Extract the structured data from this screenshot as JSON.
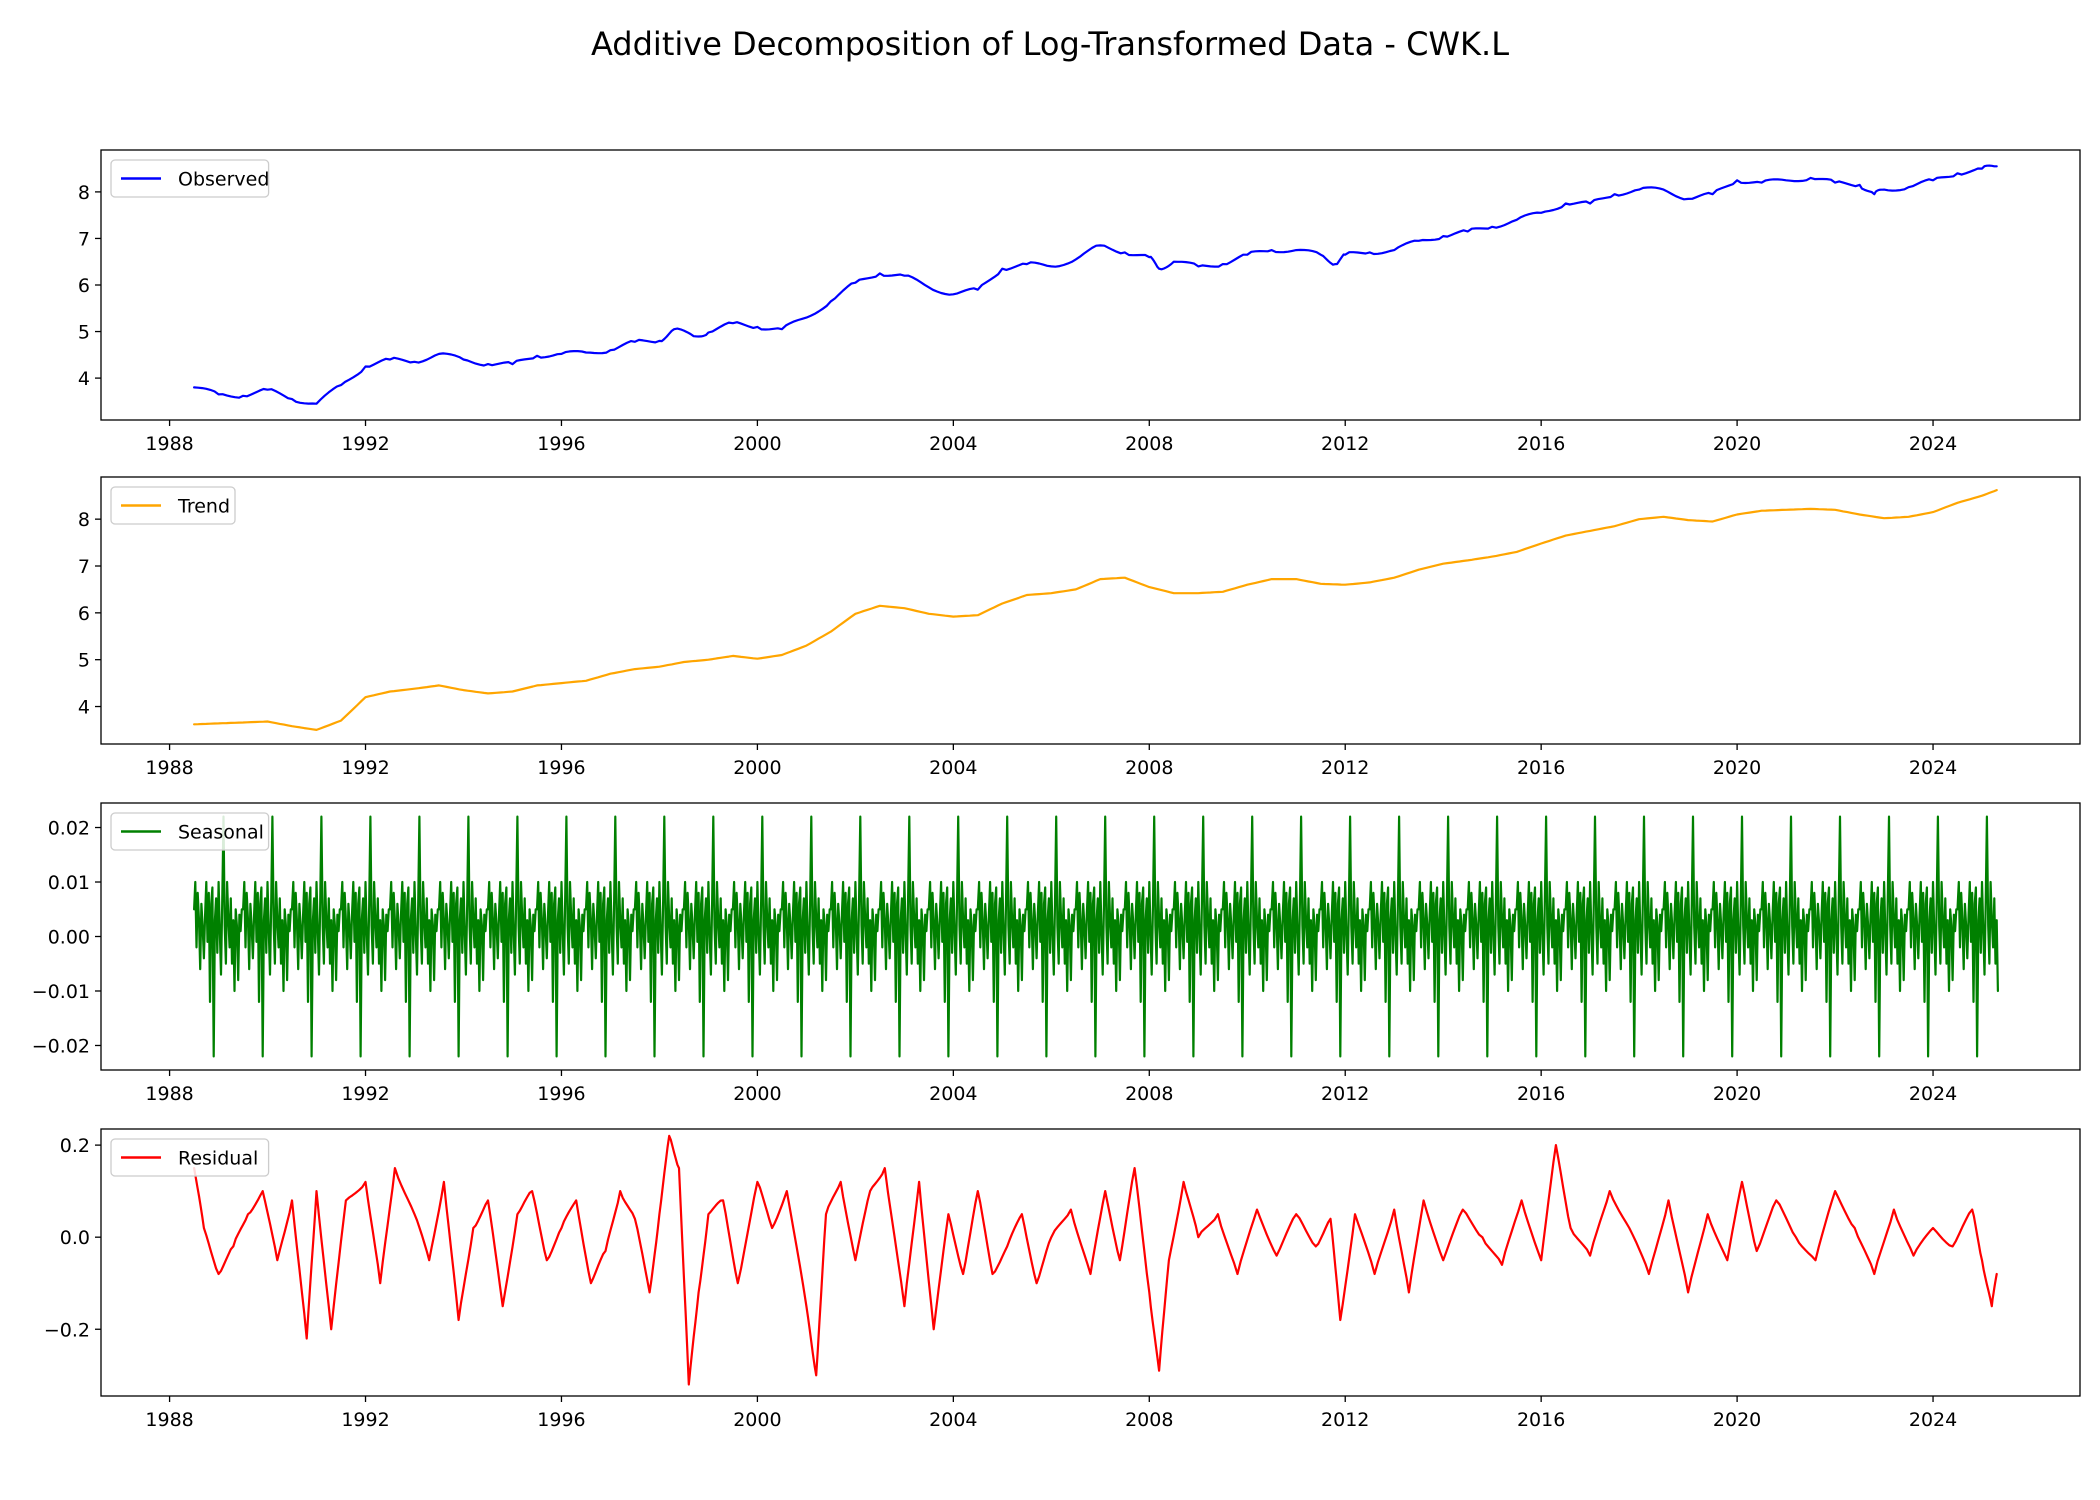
{
  "figure": {
    "title": "Additive Decomposition of Log-Transformed Data - CWK.L"
  },
  "chart_data": [
    {
      "type": "line",
      "title": "",
      "xlabel": "",
      "ylabel": "",
      "xlim": [
        1986.6,
        2027.0
      ],
      "ylim": [
        3.1,
        8.9
      ],
      "yticks": [
        "4",
        "5",
        "6",
        "7",
        "8"
      ],
      "xticks": [
        "1988",
        "1992",
        "1996",
        "2000",
        "2004",
        "2008",
        "2012",
        "2016",
        "2020",
        "2024"
      ],
      "grid": false,
      "legend": "upper left",
      "series": [
        {
          "name": "Observed",
          "color": "#0000ff",
          "x": [
            1988.5,
            1989.0,
            1989.5,
            1990.0,
            1990.5,
            1991.0,
            1991.5,
            1992.0,
            1992.5,
            1993.0,
            1993.5,
            1994.0,
            1994.5,
            1995.0,
            1995.5,
            1996.0,
            1996.5,
            1997.0,
            1997.5,
            1998.0,
            1998.3,
            1998.7,
            1999.0,
            1999.5,
            2000.0,
            2000.5,
            2001.0,
            2001.5,
            2002.0,
            2002.5,
            2003.0,
            2003.5,
            2004.0,
            2004.5,
            2005.0,
            2005.5,
            2006.0,
            2006.5,
            2007.0,
            2007.5,
            2008.0,
            2008.2,
            2008.5,
            2009.0,
            2009.5,
            2010.0,
            2010.5,
            2011.0,
            2011.5,
            2011.8,
            2012.0,
            2012.5,
            2013.0,
            2013.5,
            2014.0,
            2014.5,
            2015.0,
            2015.5,
            2016.0,
            2016.5,
            2017.0,
            2017.5,
            2018.0,
            2018.5,
            2019.0,
            2019.5,
            2020.0,
            2020.5,
            2021.0,
            2021.5,
            2022.0,
            2022.5,
            2022.8,
            2023.0,
            2023.5,
            2024.0,
            2024.5,
            2025.0,
            2025.3
          ],
          "y": [
            3.8,
            3.65,
            3.62,
            3.75,
            3.55,
            3.45,
            3.85,
            4.25,
            4.4,
            4.35,
            4.52,
            4.4,
            4.3,
            4.3,
            4.48,
            4.52,
            4.55,
            4.6,
            4.78,
            4.8,
            5.05,
            4.9,
            4.98,
            5.18,
            5.1,
            5.05,
            5.3,
            5.65,
            6.05,
            6.25,
            6.2,
            5.95,
            5.8,
            5.9,
            6.35,
            6.45,
            6.4,
            6.55,
            6.85,
            6.7,
            6.6,
            6.35,
            6.5,
            6.4,
            6.45,
            6.65,
            6.75,
            6.75,
            6.65,
            6.45,
            6.65,
            6.7,
            6.75,
            6.95,
            7.05,
            7.15,
            7.25,
            7.4,
            7.55,
            7.75,
            7.75,
            7.95,
            8.05,
            8.05,
            7.85,
            7.95,
            8.25,
            8.2,
            8.25,
            8.3,
            8.2,
            8.15,
            7.95,
            8.05,
            8.1,
            8.25,
            8.4,
            8.5,
            8.55
          ]
        }
      ]
    },
    {
      "type": "line",
      "title": "",
      "xlabel": "",
      "ylabel": "",
      "xlim": [
        1986.6,
        2027.0
      ],
      "ylim": [
        3.2,
        8.9
      ],
      "yticks": [
        "4",
        "5",
        "6",
        "7",
        "8"
      ],
      "xticks": [
        "1988",
        "1992",
        "1996",
        "2000",
        "2004",
        "2008",
        "2012",
        "2016",
        "2020",
        "2024"
      ],
      "grid": false,
      "legend": "upper left",
      "series": [
        {
          "name": "Trend",
          "color": "#ffa500",
          "x": [
            1988.5,
            1989.0,
            1989.5,
            1990.0,
            1990.5,
            1991.0,
            1991.5,
            1992.0,
            1992.5,
            1993.0,
            1993.5,
            1994.0,
            1994.5,
            1995.0,
            1995.5,
            1996.0,
            1996.5,
            1997.0,
            1997.5,
            1998.0,
            1998.5,
            1999.0,
            1999.5,
            2000.0,
            2000.5,
            2001.0,
            2001.5,
            2002.0,
            2002.5,
            2003.0,
            2003.5,
            2004.0,
            2004.5,
            2005.0,
            2005.5,
            2006.0,
            2006.5,
            2007.0,
            2007.5,
            2008.0,
            2008.5,
            2009.0,
            2009.5,
            2010.0,
            2010.5,
            2011.0,
            2011.5,
            2012.0,
            2012.5,
            2013.0,
            2013.5,
            2014.0,
            2014.5,
            2015.0,
            2015.5,
            2016.0,
            2016.5,
            2017.0,
            2017.5,
            2018.0,
            2018.5,
            2019.0,
            2019.5,
            2020.0,
            2020.5,
            2021.0,
            2021.5,
            2022.0,
            2022.5,
            2023.0,
            2023.5,
            2024.0,
            2024.5,
            2025.0,
            2025.3
          ],
          "y": [
            3.62,
            3.64,
            3.66,
            3.68,
            3.58,
            3.5,
            3.7,
            4.2,
            4.32,
            4.38,
            4.45,
            4.35,
            4.28,
            4.32,
            4.45,
            4.5,
            4.55,
            4.7,
            4.8,
            4.85,
            4.95,
            5.0,
            5.08,
            5.02,
            5.1,
            5.3,
            5.6,
            5.98,
            6.15,
            6.1,
            5.98,
            5.92,
            5.95,
            6.2,
            6.38,
            6.42,
            6.5,
            6.72,
            6.75,
            6.55,
            6.42,
            6.42,
            6.45,
            6.6,
            6.72,
            6.72,
            6.62,
            6.6,
            6.65,
            6.75,
            6.92,
            7.05,
            7.12,
            7.2,
            7.3,
            7.48,
            7.65,
            7.75,
            7.85,
            8.0,
            8.05,
            7.98,
            7.95,
            8.1,
            8.18,
            8.2,
            8.22,
            8.2,
            8.1,
            8.02,
            8.05,
            8.15,
            8.35,
            8.5,
            8.62
          ]
        }
      ]
    },
    {
      "type": "line",
      "title": "",
      "xlabel": "",
      "ylabel": "",
      "xlim": [
        1986.6,
        2027.0
      ],
      "ylim": [
        -0.0245,
        0.0245
      ],
      "yticks": [
        "0.02",
        "0.01",
        "0.00",
        "−0.01",
        "−0.02"
      ],
      "xticks": [
        "1988",
        "1992",
        "1996",
        "2000",
        "2004",
        "2008",
        "2012",
        "2016",
        "2020",
        "2024"
      ],
      "grid": false,
      "legend": "upper left",
      "series": [
        {
          "name": "Seasonal",
          "color": "#008000",
          "period": 1.0,
          "start": 1988.5,
          "end": 2025.35,
          "pattern": [
            0.005,
            0.01,
            -0.002,
            0.008,
            0.003,
            -0.006,
            0.006,
            0.002,
            -0.004,
            0.004,
            0.01,
            -0.001,
            0.008,
            -0.012,
            0.006,
            0.009,
            -0.022,
            0.003,
            0.007,
            -0.003,
            0.01,
            0.001,
            -0.007,
            0.006,
            0.022,
            0.002,
            -0.005,
            0.01,
            0.003,
            -0.002,
            0.007,
            -0.005,
            0.003,
            -0.01,
            0.005,
            0.002,
            -0.008,
            0.004,
            0.001,
            0.005
          ]
        }
      ]
    },
    {
      "type": "line",
      "title": "",
      "xlabel": "",
      "ylabel": "",
      "xlim": [
        1986.6,
        2027.0
      ],
      "ylim": [
        -0.345,
        0.235
      ],
      "yticks": [
        "0.2",
        "0.0",
        "−0.2"
      ],
      "xticks": [
        "1988",
        "1992",
        "1996",
        "2000",
        "2004",
        "2008",
        "2012",
        "2016",
        "2020",
        "2024"
      ],
      "grid": false,
      "legend": "upper left",
      "series": [
        {
          "name": "Residual",
          "color": "#ff0000",
          "x": [
            1988.5,
            1988.7,
            1989.0,
            1989.3,
            1989.6,
            1989.9,
            1990.2,
            1990.5,
            1990.8,
            1991.0,
            1991.3,
            1991.6,
            1992.0,
            1992.3,
            1992.6,
            1993.0,
            1993.3,
            1993.6,
            1993.9,
            1994.2,
            1994.5,
            1994.8,
            1995.1,
            1995.4,
            1995.7,
            1996.0,
            1996.3,
            1996.6,
            1996.9,
            1997.2,
            1997.5,
            1997.8,
            1998.0,
            1998.2,
            1998.4,
            1998.6,
            1998.8,
            1999.0,
            1999.3,
            1999.6,
            2000.0,
            2000.3,
            2000.6,
            2001.0,
            2001.2,
            2001.4,
            2001.7,
            2002.0,
            2002.3,
            2002.6,
            2003.0,
            2003.3,
            2003.6,
            2003.9,
            2004.2,
            2004.5,
            2004.8,
            2005.1,
            2005.4,
            2005.7,
            2006.0,
            2006.4,
            2006.8,
            2007.1,
            2007.4,
            2007.7,
            2008.0,
            2008.2,
            2008.4,
            2008.7,
            2009.0,
            2009.4,
            2009.8,
            2010.2,
            2010.6,
            2011.0,
            2011.4,
            2011.7,
            2011.9,
            2012.2,
            2012.6,
            2013.0,
            2013.3,
            2013.6,
            2014.0,
            2014.4,
            2014.8,
            2015.2,
            2015.6,
            2016.0,
            2016.3,
            2016.6,
            2017.0,
            2017.4,
            2017.8,
            2018.2,
            2018.6,
            2019.0,
            2019.4,
            2019.8,
            2020.1,
            2020.4,
            2020.8,
            2021.2,
            2021.6,
            2022.0,
            2022.4,
            2022.8,
            2023.2,
            2023.6,
            2024.0,
            2024.4,
            2024.8,
            2025.0,
            2025.2,
            2025.3
          ],
          "y": [
            0.15,
            0.02,
            -0.08,
            -0.02,
            0.05,
            0.1,
            -0.05,
            0.08,
            -0.22,
            0.1,
            -0.2,
            0.08,
            0.12,
            -0.1,
            0.15,
            0.05,
            -0.05,
            0.12,
            -0.18,
            0.02,
            0.08,
            -0.15,
            0.05,
            0.1,
            -0.05,
            0.02,
            0.08,
            -0.1,
            -0.03,
            0.1,
            0.04,
            -0.12,
            0.05,
            0.22,
            0.15,
            -0.32,
            -0.12,
            0.05,
            0.08,
            -0.1,
            0.12,
            0.02,
            0.1,
            -0.15,
            -0.3,
            0.05,
            0.12,
            -0.05,
            0.1,
            0.15,
            -0.15,
            0.12,
            -0.2,
            0.05,
            -0.08,
            0.1,
            -0.08,
            -0.02,
            0.05,
            -0.1,
            0.0,
            0.06,
            -0.08,
            0.1,
            -0.05,
            0.15,
            -0.12,
            -0.29,
            -0.05,
            0.12,
            0.0,
            0.05,
            -0.08,
            0.06,
            -0.04,
            0.05,
            -0.02,
            0.04,
            -0.18,
            0.05,
            -0.08,
            0.06,
            -0.12,
            0.08,
            -0.05,
            0.06,
            0.0,
            -0.06,
            0.08,
            -0.05,
            0.2,
            0.02,
            -0.04,
            0.1,
            0.02,
            -0.08,
            0.08,
            -0.12,
            0.05,
            -0.05,
            0.12,
            -0.03,
            0.08,
            0.0,
            -0.05,
            0.1,
            0.02,
            -0.08,
            0.06,
            -0.04,
            0.02,
            -0.02,
            0.06,
            -0.05,
            -0.15,
            -0.08
          ]
        }
      ]
    }
  ]
}
